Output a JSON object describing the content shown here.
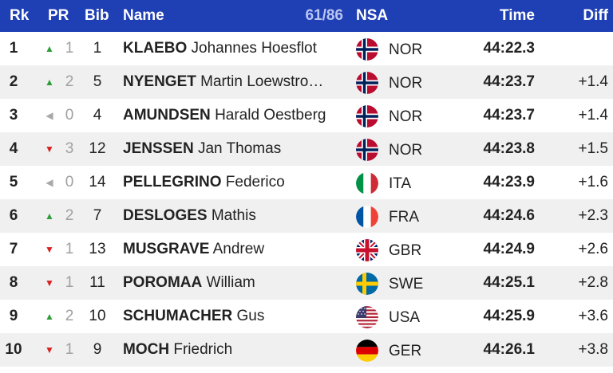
{
  "header": {
    "rk": "Rk",
    "pr": "PR",
    "bib": "Bib",
    "name": "Name",
    "count": "61/86",
    "nsa": "NSA",
    "time": "Time",
    "diff": "Diff"
  },
  "rows": [
    {
      "rk": "1",
      "trend": "up",
      "pr": "1",
      "bib": "1",
      "last": "KLAEBO",
      "first": "Johannes Hoesflot",
      "flag": "norway-flag-icon",
      "nsa": "NOR",
      "time": "44:22.3",
      "diff": ""
    },
    {
      "rk": "2",
      "trend": "up",
      "pr": "2",
      "bib": "5",
      "last": "NYENGET",
      "first": "Martin Loewstro…",
      "flag": "norway-flag-icon",
      "nsa": "NOR",
      "time": "44:23.7",
      "diff": "+1.4"
    },
    {
      "rk": "3",
      "trend": "same",
      "pr": "0",
      "bib": "4",
      "last": "AMUNDSEN",
      "first": "Harald Oestberg",
      "flag": "norway-flag-icon",
      "nsa": "NOR",
      "time": "44:23.7",
      "diff": "+1.4"
    },
    {
      "rk": "4",
      "trend": "down",
      "pr": "3",
      "bib": "12",
      "last": "JENSSEN",
      "first": "Jan Thomas",
      "flag": "norway-flag-icon",
      "nsa": "NOR",
      "time": "44:23.8",
      "diff": "+1.5"
    },
    {
      "rk": "5",
      "trend": "same",
      "pr": "0",
      "bib": "14",
      "last": "PELLEGRINO",
      "first": "Federico",
      "flag": "italy-flag-icon",
      "nsa": "ITA",
      "time": "44:23.9",
      "diff": "+1.6"
    },
    {
      "rk": "6",
      "trend": "up",
      "pr": "2",
      "bib": "7",
      "last": "DESLOGES",
      "first": "Mathis",
      "flag": "france-flag-icon",
      "nsa": "FRA",
      "time": "44:24.6",
      "diff": "+2.3"
    },
    {
      "rk": "7",
      "trend": "down",
      "pr": "1",
      "bib": "13",
      "last": "MUSGRAVE",
      "first": "Andrew",
      "flag": "uk-flag-icon",
      "nsa": "GBR",
      "time": "44:24.9",
      "diff": "+2.6"
    },
    {
      "rk": "8",
      "trend": "down",
      "pr": "1",
      "bib": "11",
      "last": "POROMAA",
      "first": "William",
      "flag": "sweden-flag-icon",
      "nsa": "SWE",
      "time": "44:25.1",
      "diff": "+2.8"
    },
    {
      "rk": "9",
      "trend": "up",
      "pr": "2",
      "bib": "10",
      "last": "SCHUMACHER",
      "first": "Gus",
      "flag": "usa-flag-icon",
      "nsa": "USA",
      "time": "44:25.9",
      "diff": "+3.6"
    },
    {
      "rk": "10",
      "trend": "down",
      "pr": "1",
      "bib": "9",
      "last": "MOCH",
      "first": "Friedrich",
      "flag": "germany-flag-icon",
      "nsa": "GER",
      "time": "44:26.1",
      "diff": "+3.8"
    }
  ],
  "colors": {
    "header_bg": "#1f3fb4",
    "up": "#2e9e3a",
    "down": "#d92020",
    "same": "#a8a8a8",
    "row_alt": "#f0f0f0"
  }
}
